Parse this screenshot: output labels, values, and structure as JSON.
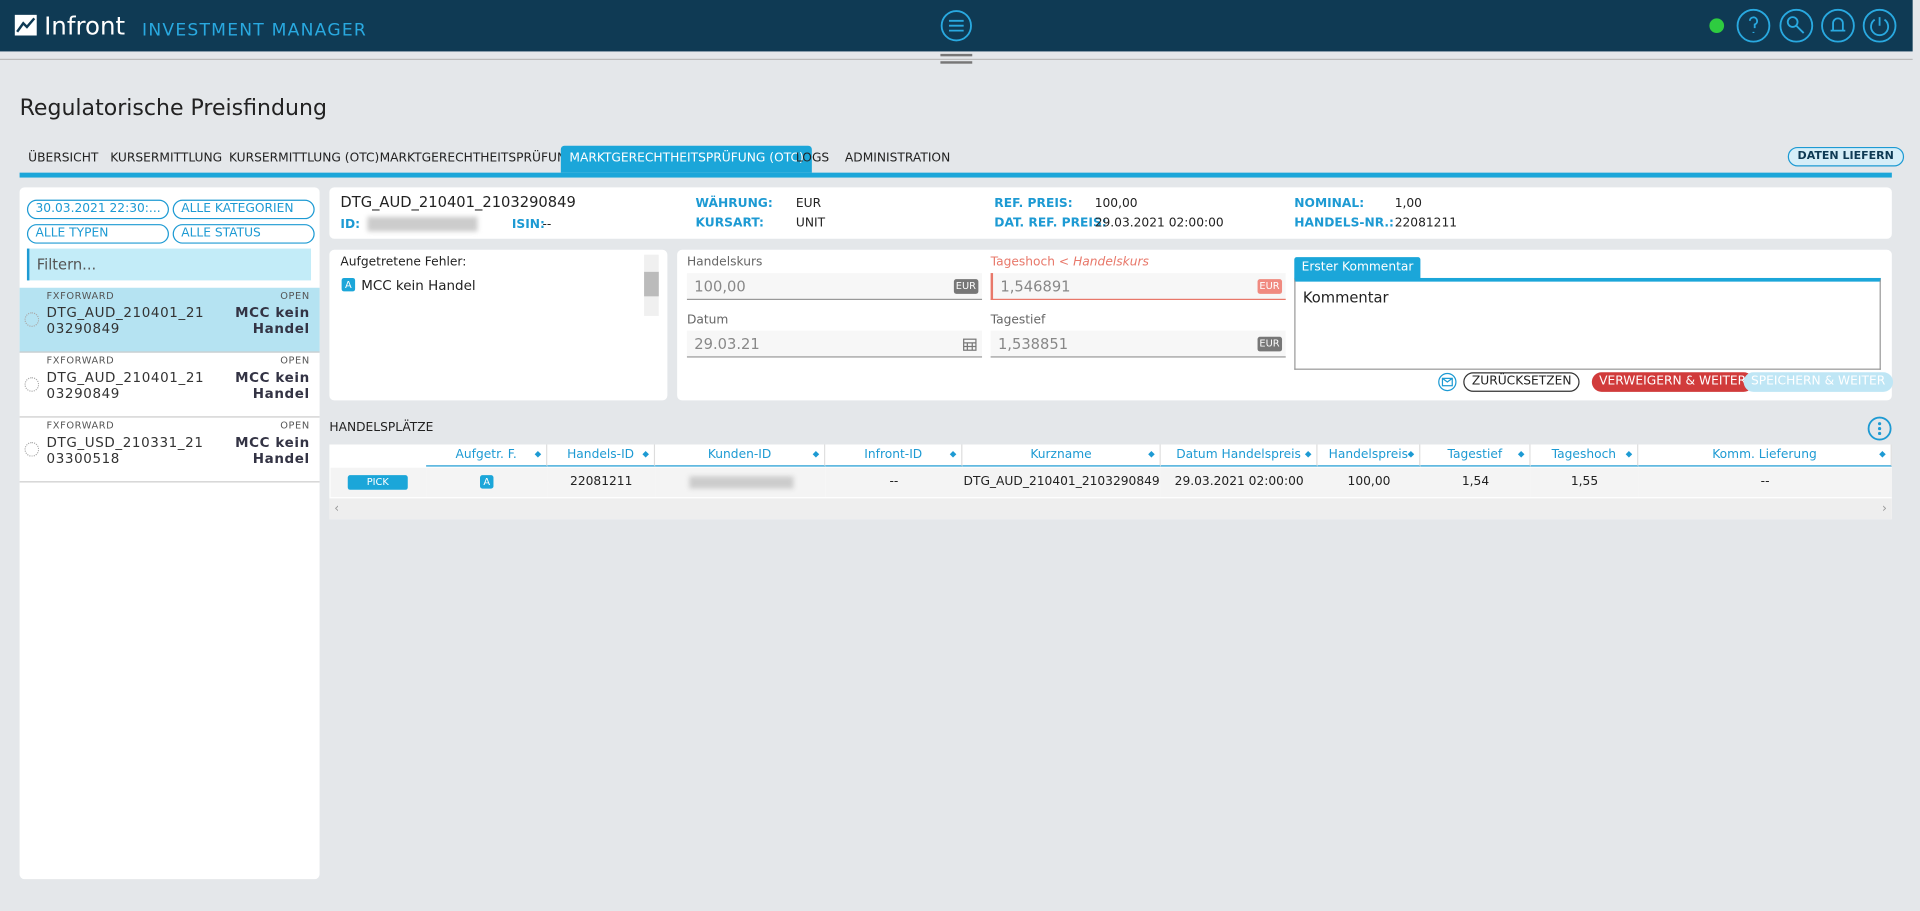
{
  "header": {
    "brand": "Infront",
    "app": "INVESTMENT MANAGER"
  },
  "page": {
    "title": "Regulatorische Preisfindung",
    "tabs": [
      "ÜBERSICHT",
      "KURSERMITTLUNG",
      "KURSERMITTLUNG (OTC)",
      "MARKTGERECHTHEITSPRÜFUNG",
      "MARKTGERECHTHEITSPRÜFUNG (OTC)",
      "LOGS",
      "ADMINISTRATION"
    ],
    "active_tab": 4,
    "action": "DATEN LIEFERN"
  },
  "filters": {
    "date": "30.03.2021 22:30:...",
    "category": "ALLE KATEGORIEN",
    "type": "ALLE TYPEN",
    "status": "ALLE STATUS",
    "search": "Filtern..."
  },
  "list": [
    {
      "type": "FXFORWARD",
      "status": "OPEN",
      "name": "DTG_AUD_210401_2103290849",
      "reason": "MCC kein Handel"
    },
    {
      "type": "FXFORWARD",
      "status": "OPEN",
      "name": "DTG_AUD_210401_2103290849",
      "reason": "MCC kein Handel"
    },
    {
      "type": "FXFORWARD",
      "status": "OPEN",
      "name": "DTG_USD_210331_2103300518",
      "reason": "MCC kein Handel"
    }
  ],
  "selected": 0,
  "detail": {
    "name": "DTG_AUD_210401_2103290849",
    "id_label": "ID:",
    "isin_label": "ISIN:",
    "isin": "--",
    "fields": [
      {
        "label": "WÄHRUNG:",
        "value": "EUR"
      },
      {
        "label": "KURSART:",
        "value": "UNIT"
      },
      {
        "label": "REF. PREIS:",
        "value": "100,00"
      },
      {
        "label": "DAT. REF. PREIS:",
        "value": "29.03.2021 02:00:00"
      },
      {
        "label": "NOMINAL:",
        "value": "1,00"
      },
      {
        "label": "HANDELS-NR.:",
        "value": "22081211"
      }
    ]
  },
  "errors": {
    "title": "Aufgetretene Fehler:",
    "items": [
      {
        "badge": "A",
        "text": "MCC kein Handel"
      }
    ]
  },
  "form": {
    "handelskurs": {
      "label": "Handelskurs",
      "value": "100,00",
      "unit": "EUR"
    },
    "tageshoch": {
      "label": "Tageshoch",
      "note": "< Handelskurs",
      "value": "1,546891",
      "unit": "EUR"
    },
    "datum": {
      "label": "Datum",
      "value": "29.03.21"
    },
    "tagestief": {
      "label": "Tagestief",
      "value": "1,538851",
      "unit": "EUR"
    }
  },
  "comment": {
    "tab": "Erster Kommentar",
    "text": "Kommentar",
    "reset": "ZURÜCKSETZEN",
    "reject": "VERWEIGERN & WEITER",
    "save": "SPEICHERN & WEITER"
  },
  "table": {
    "title": "HANDELSPLÄTZE",
    "columns": [
      "Aufgetr. F.",
      "Handels-ID",
      "Kunden-ID",
      "Infront-ID",
      "Kurzname",
      "Datum Handelspreis",
      "Handelspreis",
      "Tagestief",
      "Tageshoch",
      "Komm. Lieferung"
    ],
    "rows": [
      {
        "action": "PICK",
        "cells": [
          "A",
          "22081211",
          null,
          "--",
          "DTG_AUD_210401_2103290849",
          "29.03.2021 02:00:00",
          "100,00",
          "1,54",
          "1,55",
          "--"
        ]
      }
    ]
  }
}
